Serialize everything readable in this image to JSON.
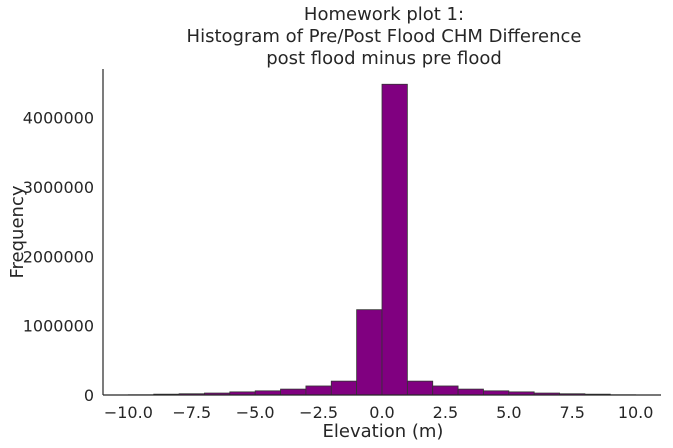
{
  "chart_data": {
    "type": "bar",
    "title": [
      "Homework plot 1:",
      "Histogram of Pre/Post Flood CHM Difference",
      "post flood minus pre flood"
    ],
    "xlabel": "Elevation (m)",
    "ylabel": "Frequency",
    "xlim": [
      -11,
      11
    ],
    "ylim": [
      0,
      4700000
    ],
    "grid": false,
    "color": "#800080",
    "xticks": [
      -10.0,
      -7.5,
      -5.0,
      -2.5,
      0.0,
      2.5,
      5.0,
      7.5,
      10.0
    ],
    "xtick_labels": [
      "−10.0",
      "−7.5",
      "−5.0",
      "−2.5",
      "0.0",
      "2.5",
      "5.0",
      "7.5",
      "10.0"
    ],
    "yticks": [
      0,
      1000000,
      2000000,
      3000000,
      4000000
    ],
    "ytick_labels": [
      "0",
      "1000000",
      "2000000",
      "3000000",
      "4000000"
    ],
    "bins": [
      {
        "x0": -10,
        "x1": -9,
        "value": 3000
      },
      {
        "x0": -9,
        "x1": -8,
        "value": 12000
      },
      {
        "x0": -8,
        "x1": -7,
        "value": 18000
      },
      {
        "x0": -7,
        "x1": -6,
        "value": 28000
      },
      {
        "x0": -6,
        "x1": -5,
        "value": 45000
      },
      {
        "x0": -5,
        "x1": -4,
        "value": 60000
      },
      {
        "x0": -4,
        "x1": -3,
        "value": 85000
      },
      {
        "x0": -3,
        "x1": -2,
        "value": 130000
      },
      {
        "x0": -2,
        "x1": -1,
        "value": 200000
      },
      {
        "x0": -1,
        "x1": 0,
        "value": 1230000
      },
      {
        "x0": 0,
        "x1": 1,
        "value": 4480000
      },
      {
        "x0": 1,
        "x1": 2,
        "value": 200000
      },
      {
        "x0": 2,
        "x1": 3,
        "value": 130000
      },
      {
        "x0": 3,
        "x1": 4,
        "value": 85000
      },
      {
        "x0": 4,
        "x1": 5,
        "value": 60000
      },
      {
        "x0": 5,
        "x1": 6,
        "value": 45000
      },
      {
        "x0": 6,
        "x1": 7,
        "value": 28000
      },
      {
        "x0": 7,
        "x1": 8,
        "value": 18000
      },
      {
        "x0": 8,
        "x1": 9,
        "value": 12000
      },
      {
        "x0": 9,
        "x1": 10,
        "value": 3000
      }
    ]
  }
}
